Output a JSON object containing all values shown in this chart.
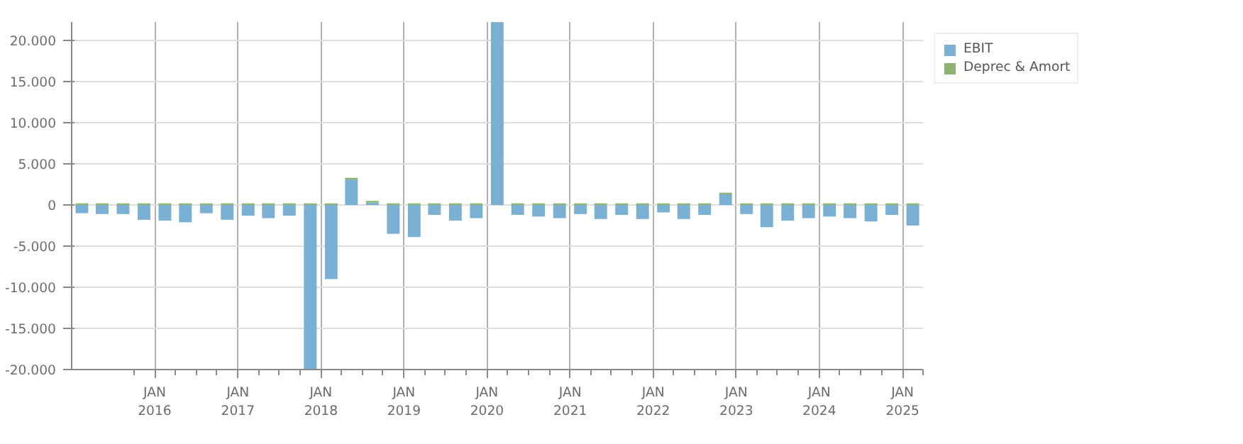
{
  "chart_data": {
    "type": "bar",
    "stacked": true,
    "x": [
      "2015-02-15",
      "2015-05-15",
      "2015-08-15",
      "2015-11-15",
      "2016-02-15",
      "2016-05-15",
      "2016-08-15",
      "2016-11-15",
      "2017-02-15",
      "2017-05-15",
      "2017-08-15",
      "2017-11-15",
      "2018-02-15",
      "2018-05-15",
      "2018-08-15",
      "2018-11-15",
      "2019-02-15",
      "2019-05-15",
      "2019-08-15",
      "2019-11-15",
      "2020-02-15",
      "2020-05-15",
      "2020-08-15",
      "2020-11-15",
      "2021-02-15",
      "2021-05-15",
      "2021-08-15",
      "2021-11-15",
      "2022-02-15",
      "2022-05-15",
      "2022-08-15",
      "2022-11-15",
      "2023-02-15",
      "2023-05-15",
      "2023-08-15",
      "2023-11-15",
      "2024-02-15",
      "2024-05-15",
      "2024-08-15",
      "2024-11-15",
      "2025-02-15"
    ],
    "series": [
      {
        "name": "EBIT",
        "color": "#7ab0d4",
        "values": [
          -1000,
          -1100,
          -1100,
          -1800,
          -1900,
          -2100,
          -1000,
          -1800,
          -1300,
          -1600,
          -1300,
          -20000,
          -9000,
          3100,
          300,
          -3500,
          -3900,
          -1200,
          -1900,
          -1600,
          22200,
          -1200,
          -1400,
          -1600,
          -1100,
          -1700,
          -1200,
          -1700,
          -900,
          -1700,
          -1200,
          1300,
          -1100,
          -2700,
          -1900,
          -1600,
          -1400,
          -1600,
          -2000,
          -1200,
          -2500
        ]
      },
      {
        "name": "Deprec & Amort",
        "color": "#8db46e",
        "values": [
          200,
          200,
          200,
          200,
          200,
          200,
          200,
          200,
          200,
          200,
          200,
          200,
          200,
          200,
          200,
          200,
          200,
          200,
          200,
          200,
          200,
          200,
          200,
          200,
          200,
          200,
          200,
          200,
          200,
          200,
          200,
          200,
          200,
          200,
          200,
          200,
          200,
          200,
          200,
          200,
          200
        ]
      }
    ],
    "xlim": [
      "2015-01-01",
      "2025-04-01"
    ],
    "xticks": [
      {
        "value": "2016-01-01",
        "label": "JAN\n2016"
      },
      {
        "value": "2017-01-01",
        "label": "JAN\n2017"
      },
      {
        "value": "2018-01-01",
        "label": "JAN\n2018"
      },
      {
        "value": "2019-01-01",
        "label": "JAN\n2019"
      },
      {
        "value": "2020-01-01",
        "label": "JAN\n2020"
      },
      {
        "value": "2021-01-01",
        "label": "JAN\n2021"
      },
      {
        "value": "2022-01-01",
        "label": "JAN\n2022"
      },
      {
        "value": "2023-01-01",
        "label": "JAN\n2023"
      },
      {
        "value": "2024-01-01",
        "label": "JAN\n2024"
      },
      {
        "value": "2025-01-01",
        "label": "JAN\n2025"
      }
    ],
    "ylim": [
      -20000,
      22250
    ],
    "yticks": [
      {
        "value": -20000,
        "label": "-20.000"
      },
      {
        "value": -15000,
        "label": "-15.000"
      },
      {
        "value": -10000,
        "label": "-10.000"
      },
      {
        "value": -5000,
        "label": "-5.000"
      },
      {
        "value": 0,
        "label": "0"
      },
      {
        "value": 5000,
        "label": "5.000"
      },
      {
        "value": 10000,
        "label": "10.000"
      },
      {
        "value": 15000,
        "label": "15.000"
      },
      {
        "value": 20000,
        "label": "20.000"
      }
    ],
    "grid": true,
    "legend": "top right"
  }
}
